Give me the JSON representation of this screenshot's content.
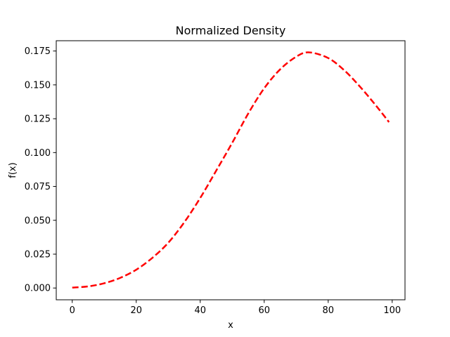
{
  "chart_data": {
    "type": "line",
    "title": "Normalized Density",
    "xlabel": "x",
    "ylabel": "f(x)",
    "xlim": [
      -5,
      104
    ],
    "ylim": [
      -0.0087,
      0.1826
    ],
    "grid": false,
    "legend": "none",
    "xticks": [
      0,
      20,
      40,
      60,
      80,
      100
    ],
    "xtick_labels": [
      "0",
      "20",
      "40",
      "60",
      "80",
      "100"
    ],
    "yticks": [
      0.0,
      0.025,
      0.05,
      0.075,
      0.1,
      0.125,
      0.15,
      0.175
    ],
    "ytick_labels": [
      "0.000",
      "0.025",
      "0.050",
      "0.075",
      "0.100",
      "0.125",
      "0.150",
      "0.175"
    ],
    "series": [
      {
        "color": "#ff0000",
        "linestyle": "dashed",
        "x": [
          0,
          5,
          10,
          15,
          20,
          25,
          30,
          35,
          40,
          45,
          50,
          55,
          60,
          65,
          70,
          74,
          80,
          85,
          90,
          95,
          99
        ],
        "y": [
          0.0003,
          0.0012,
          0.0035,
          0.0075,
          0.0135,
          0.0222,
          0.0334,
          0.0485,
          0.0665,
          0.0867,
          0.1072,
          0.1288,
          0.1475,
          0.1615,
          0.1708,
          0.174,
          0.1698,
          0.1608,
          0.1485,
          0.1345,
          0.1225
        ]
      }
    ]
  }
}
